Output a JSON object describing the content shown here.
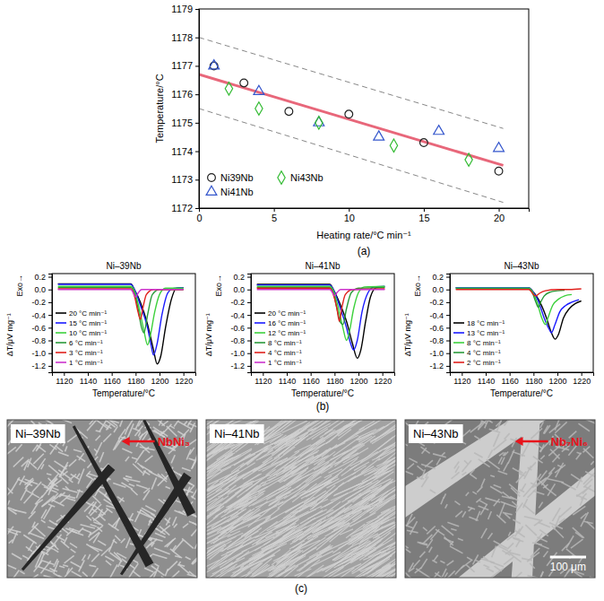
{
  "chart_data": [
    {
      "type": "scatter",
      "label": "(a)",
      "x_label": "Heating rate/°C min⁻¹",
      "y_label": "Temperature/°C",
      "xlim": [
        0,
        22
      ],
      "xticks": [
        0,
        5,
        10,
        15,
        20
      ],
      "ylim": [
        1172,
        1179
      ],
      "yticks": [
        1172,
        1173,
        1174,
        1175,
        1176,
        1177,
        1178,
        1179
      ],
      "legend": "lower left",
      "series": [
        {
          "type": "line",
          "color": "#888888",
          "line_style": "dashed",
          "x": [
            0,
            20.3
          ],
          "values": [
            1178.0,
            1174.8
          ]
        },
        {
          "type": "line",
          "color": "#888888",
          "line_style": "dashed",
          "x": [
            0,
            20.3
          ],
          "values": [
            1175.5,
            1172.2
          ]
        },
        {
          "type": "line",
          "color": "#e8677a",
          "line_style": "solid",
          "x": [
            0,
            20.3
          ],
          "values": [
            1176.7,
            1173.5
          ]
        },
        {
          "name": "Ni39Nb",
          "color": "#222222",
          "marker": "circle",
          "x": [
            1,
            3,
            6,
            10,
            15,
            20
          ],
          "values": [
            1177.0,
            1176.4,
            1175.4,
            1175.3,
            1174.3,
            1173.3
          ]
        },
        {
          "name": "Ni41Nb",
          "color": "#3355cc",
          "marker": "triangle",
          "x": [
            1,
            4,
            8,
            12,
            16,
            20
          ],
          "values": [
            1177.0,
            1176.1,
            1175.0,
            1174.5,
            1174.7,
            1174.1
          ]
        },
        {
          "name": "Ni43Nb",
          "color": "#33bb33",
          "marker": "diamond",
          "x": [
            2,
            4,
            8,
            13,
            18
          ],
          "values": [
            1176.2,
            1175.5,
            1175.0,
            1174.2,
            1173.7
          ]
        }
      ]
    },
    {
      "type": "line",
      "title": "Ni–39Nb",
      "x_label": "Temperature/°C",
      "y_label": "ΔT/μV mg⁻¹",
      "annotation": "Exo→",
      "xlim": [
        1110,
        1230
      ],
      "xticks": [
        1120,
        1140,
        1160,
        1180,
        1200,
        1220
      ],
      "ylim": [
        -1.3,
        0.25
      ],
      "yticks": [
        -1.2,
        {
          "value": -1.0,
          "label": "-1.0"
        },
        -0.8,
        -0.6,
        -0.4,
        -0.2,
        {
          "value": 0,
          "label": "0.0"
        },
        0.2
      ],
      "legend": "lower left",
      "series": [
        {
          "name": "20 °C min⁻¹",
          "color": "#000000",
          "x": [
            1115,
            1176,
            1179,
            1184,
            1190,
            1195,
            1198,
            1201,
            1205,
            1210,
            1214,
            1220
          ],
          "values": [
            0.09,
            0.09,
            0.0,
            -0.2,
            -0.55,
            -0.95,
            -1.17,
            -1.05,
            -0.6,
            -0.15,
            0.02,
            0.03
          ]
        },
        {
          "name": "15 °C min⁻¹",
          "color": "#1a1aff",
          "x": [
            1115,
            1176,
            1179,
            1184,
            1190,
            1193,
            1195,
            1198,
            1202,
            1207,
            1212,
            1220
          ],
          "values": [
            0.08,
            0.08,
            0.0,
            -0.25,
            -0.6,
            -0.88,
            -1.03,
            -0.85,
            -0.4,
            -0.05,
            0.02,
            0.03
          ]
        },
        {
          "name": "10 °C min⁻¹",
          "color": "#3dd13d",
          "x": [
            1115,
            1176,
            1179,
            1183,
            1187,
            1190,
            1192,
            1196,
            1200,
            1205,
            1220
          ],
          "values": [
            0.05,
            0.05,
            -0.02,
            -0.3,
            -0.65,
            -0.87,
            -0.75,
            -0.35,
            -0.08,
            0.02,
            0.02
          ]
        },
        {
          "name": "6 °C min⁻¹",
          "color": "#2a9a3a",
          "x": [
            1115,
            1176,
            1179,
            1182,
            1185,
            1187,
            1190,
            1194,
            1200,
            1220
          ],
          "values": [
            0.03,
            0.03,
            -0.05,
            -0.3,
            -0.6,
            -0.68,
            -0.4,
            -0.08,
            0.0,
            0.0
          ]
        },
        {
          "name": "3 °C min⁻¹",
          "color": "#e0201c",
          "x": [
            1115,
            1176,
            1179,
            1182,
            1184,
            1186,
            1189,
            1195,
            1220
          ],
          "values": [
            0.01,
            0.01,
            -0.1,
            -0.35,
            -0.47,
            -0.3,
            -0.08,
            0.0,
            0.0
          ]
        },
        {
          "name": "1 °C min⁻¹",
          "color": "#cc33cc",
          "x": [
            1115,
            1176,
            1178,
            1180,
            1182,
            1185,
            1220
          ],
          "values": [
            0.0,
            0.0,
            -0.05,
            -0.12,
            -0.06,
            0.0,
            0.0
          ]
        }
      ]
    },
    {
      "type": "line",
      "title": "Ni–41Nb",
      "label": "(b)",
      "x_label": "Temperature/°C",
      "y_label": "ΔT/μV mg⁻¹",
      "annotation": "Exo→",
      "xlim": [
        1110,
        1230
      ],
      "xticks": [
        1120,
        1140,
        1160,
        1180,
        1200,
        1220
      ],
      "ylim": [
        -1.3,
        0.25
      ],
      "yticks": [
        -1.2,
        {
          "value": -1.0,
          "label": "-1.0"
        },
        -0.8,
        -0.6,
        -0.4,
        -0.2,
        {
          "value": 0,
          "label": "0.0"
        },
        0.2
      ],
      "legend": "lower left",
      "series": [
        {
          "name": "20 °C min⁻¹",
          "color": "#000000",
          "x": [
            1115,
            1176,
            1179,
            1184,
            1190,
            1195,
            1199,
            1202,
            1206,
            1210,
            1215,
            1222
          ],
          "values": [
            0.08,
            0.08,
            0.0,
            -0.2,
            -0.5,
            -0.85,
            -1.08,
            -0.95,
            -0.5,
            -0.12,
            0.03,
            0.04
          ]
        },
        {
          "name": "16 °C min⁻¹",
          "color": "#1a1aff",
          "x": [
            1115,
            1176,
            1179,
            1184,
            1190,
            1193,
            1196,
            1199,
            1203,
            1208,
            1213,
            1222
          ],
          "values": [
            0.07,
            0.07,
            0.0,
            -0.25,
            -0.6,
            -0.82,
            -0.95,
            -0.8,
            -0.35,
            -0.05,
            0.04,
            0.05
          ]
        },
        {
          "name": "12 °C min⁻¹",
          "color": "#3dd13d",
          "x": [
            1115,
            1176,
            1179,
            1183,
            1187,
            1190,
            1192,
            1196,
            1200,
            1205,
            1222
          ],
          "values": [
            0.05,
            0.05,
            -0.02,
            -0.28,
            -0.6,
            -0.8,
            -0.7,
            -0.3,
            -0.05,
            0.04,
            0.05
          ]
        },
        {
          "name": "8 °C min⁻¹",
          "color": "#2a9a3a",
          "x": [
            1115,
            1176,
            1179,
            1182,
            1185,
            1187,
            1190,
            1194,
            1200,
            1222
          ],
          "values": [
            0.03,
            0.03,
            -0.05,
            -0.3,
            -0.52,
            -0.55,
            -0.3,
            -0.05,
            0.02,
            0.03
          ]
        },
        {
          "name": "4 °C min⁻¹",
          "color": "#e0201c",
          "x": [
            1115,
            1176,
            1179,
            1182,
            1184,
            1186,
            1189,
            1195,
            1222
          ],
          "values": [
            0.02,
            0.02,
            -0.08,
            -0.3,
            -0.5,
            -0.3,
            -0.08,
            0.0,
            0.01
          ]
        },
        {
          "name": "1 °C min⁻¹",
          "color": "#cc33cc",
          "x": [
            1115,
            1176,
            1178,
            1180,
            1182,
            1185,
            1222
          ],
          "values": [
            0.0,
            0.0,
            -0.04,
            -0.1,
            -0.05,
            0.0,
            0.0
          ]
        }
      ]
    },
    {
      "type": "line",
      "title": "Ni–43Nb",
      "x_label": "Temperature/°C",
      "y_label": "ΔT/μV mg⁻¹",
      "annotation": "Exo→",
      "xlim": [
        1110,
        1230
      ],
      "xticks": [
        1120,
        1140,
        1160,
        1180,
        1200,
        1220
      ],
      "ylim": [
        -1.3,
        0.25
      ],
      "yticks": [
        -1.2,
        {
          "value": -1.0,
          "label": "-1.0"
        },
        -0.8,
        -0.6,
        -0.4,
        -0.2,
        {
          "value": 0,
          "label": "0.0"
        },
        0.2
      ],
      "legend": "lower left",
      "series": [
        {
          "name": "18 °C min⁻¹",
          "color": "#000000",
          "x": [
            1115,
            1176,
            1179,
            1184,
            1190,
            1195,
            1198,
            1201,
            1205,
            1210,
            1215,
            1220
          ],
          "values": [
            0.03,
            0.03,
            -0.02,
            -0.15,
            -0.4,
            -0.68,
            -0.78,
            -0.7,
            -0.45,
            -0.3,
            -0.22,
            -0.18
          ]
        },
        {
          "name": "13 °C min⁻¹",
          "color": "#1a1aff",
          "x": [
            1115,
            1176,
            1179,
            1184,
            1189,
            1193,
            1195,
            1198,
            1202,
            1207,
            1212,
            1218
          ],
          "values": [
            0.03,
            0.03,
            -0.02,
            -0.18,
            -0.45,
            -0.62,
            -0.68,
            -0.55,
            -0.35,
            -0.25,
            -0.2,
            -0.16
          ]
        },
        {
          "name": "8 °C min⁻¹",
          "color": "#3dd13d",
          "x": [
            1115,
            1176,
            1179,
            1183,
            1187,
            1190,
            1192,
            1196,
            1201,
            1206,
            1212
          ],
          "values": [
            0.02,
            0.02,
            -0.03,
            -0.2,
            -0.45,
            -0.55,
            -0.45,
            -0.25,
            -0.15,
            -0.1,
            -0.08
          ]
        },
        {
          "name": "4 °C min⁻¹",
          "color": "#2a9a3a",
          "x": [
            1115,
            1176,
            1179,
            1182,
            1184,
            1186,
            1189,
            1194,
            1200,
            1206
          ],
          "values": [
            0.01,
            0.01,
            -0.05,
            -0.2,
            -0.28,
            -0.2,
            -0.1,
            -0.04,
            -0.02,
            -0.01
          ]
        },
        {
          "name": "2 °C min⁻¹",
          "color": "#e0201c",
          "x": [
            1115,
            1176,
            1178,
            1180,
            1182,
            1185,
            1190,
            1200,
            1210,
            1220
          ],
          "values": [
            0.0,
            0.0,
            -0.03,
            -0.08,
            -0.1,
            -0.06,
            -0.02,
            0.0,
            0.0,
            0.01
          ]
        }
      ]
    },
    {
      "type": "image",
      "label": "(c)",
      "panels": [
        {
          "title": "Ni–39Nb",
          "annotation": "NbNi₃"
        },
        {
          "title": "Ni–41Nb"
        },
        {
          "title": "Ni–43Nb",
          "annotation": "Nb₇Ni₆",
          "scale_bar": "100 μm"
        }
      ]
    }
  ]
}
